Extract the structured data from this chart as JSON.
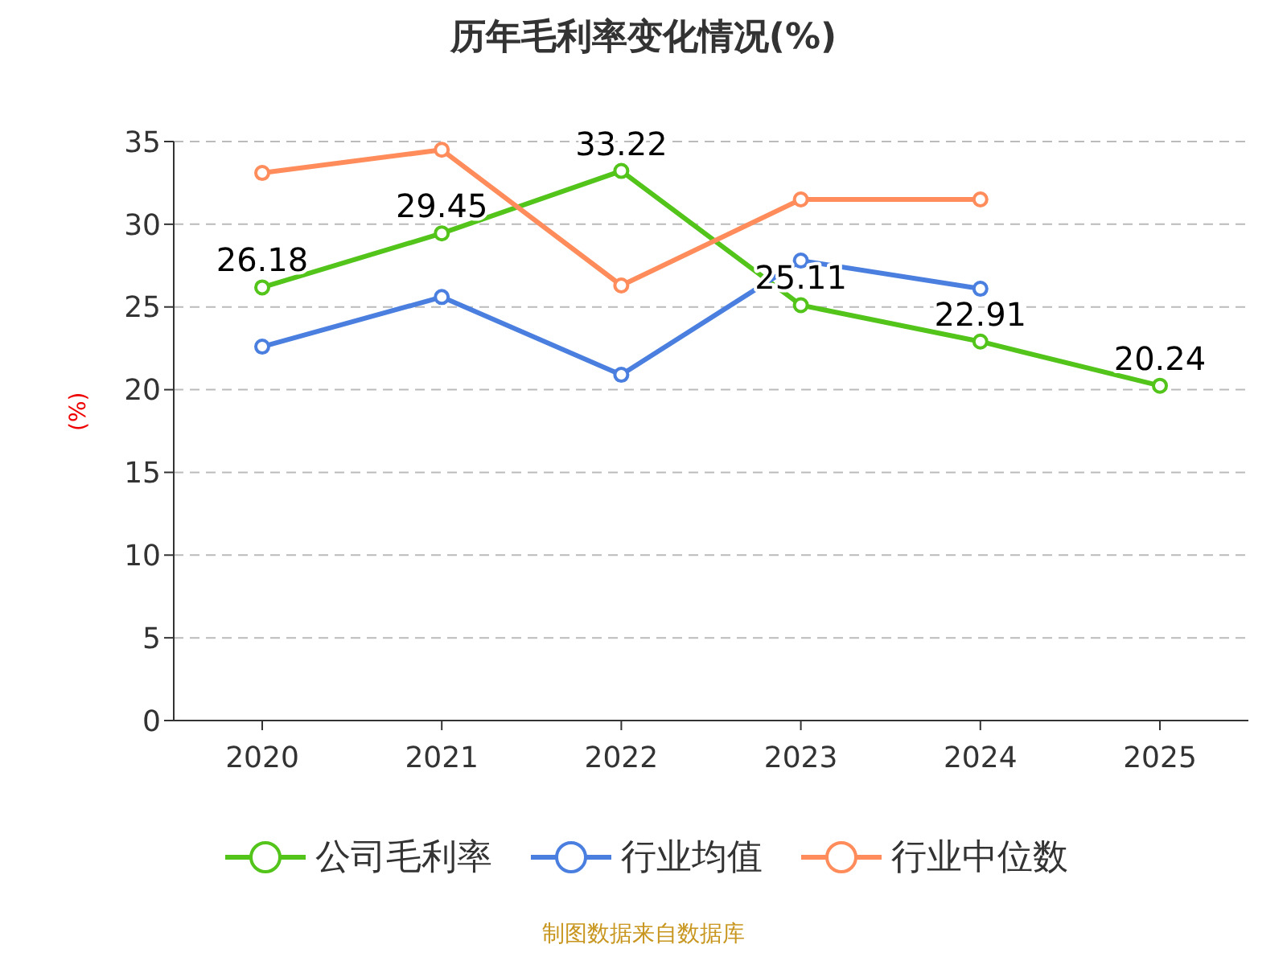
{
  "chart_data": {
    "type": "line",
    "title": "历年毛利率变化情况(%)",
    "ylabel": "(%)",
    "categories": [
      "2020",
      "2021",
      "2022",
      "2023",
      "2024",
      "2025"
    ],
    "series": [
      {
        "name": "公司毛利率",
        "color": "#52c41a",
        "values": [
          26.18,
          29.45,
          33.22,
          25.11,
          22.91,
          20.24
        ],
        "value_labels": [
          "26.18",
          "29.45",
          "33.22",
          "25.11",
          "22.91",
          "20.24"
        ]
      },
      {
        "name": "行业均值",
        "color": "#4a7fe0",
        "values": [
          22.6,
          25.6,
          20.9,
          27.8,
          26.1,
          null
        ]
      },
      {
        "name": "行业中位数",
        "color": "#ff8c5a",
        "values": [
          33.1,
          34.5,
          26.3,
          31.5,
          31.5,
          null
        ]
      }
    ],
    "ylim": [
      0,
      35
    ],
    "yticks": [
      0,
      5,
      10,
      15,
      20,
      25,
      30,
      35
    ],
    "grid": "y",
    "legend": "bottom",
    "marker": "circle",
    "line_style": "solid",
    "annotations": [
      "制图数据来自数据库"
    ]
  }
}
